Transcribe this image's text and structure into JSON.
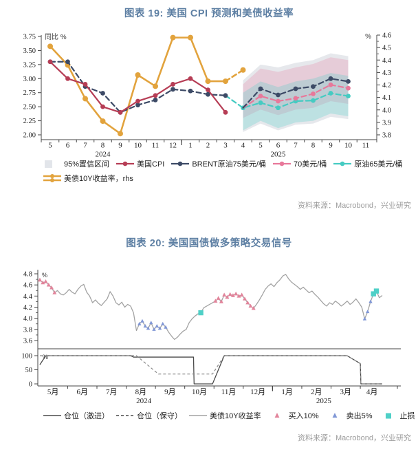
{
  "chart19": {
    "title": "图表 19: 美国 CPI 预测和美债收益率",
    "source": "资料来源：Macrobond，兴业研究",
    "legend_rows": [
      [
        {
          "label": "95%置信区间",
          "marker": "band",
          "color": "#e2e5ea"
        },
        {
          "label": "美国CPI",
          "marker": "line-dot",
          "color": "#b63d55"
        },
        {
          "label": "BRENT原油75美元/桶",
          "marker": "line-dot",
          "color": "#3c4a66"
        },
        {
          "label": "70美元/桶",
          "marker": "line-dot",
          "color": "#e8789a"
        },
        {
          "label": "原油65美元/桶",
          "marker": "line-dot",
          "color": "#45cbc2"
        }
      ],
      [
        {
          "label": "美债10Y收益率，rhs",
          "marker": "double-line-dot",
          "color": "#e2a33d"
        }
      ]
    ],
    "chart_data": {
      "type": "line",
      "categories": [
        "5",
        "6",
        "7",
        "8",
        "9",
        "10",
        "11",
        "12",
        "1",
        "2",
        "3",
        "4",
        "5",
        "6",
        "7",
        "8",
        "9",
        "10",
        "11"
      ],
      "years": [
        {
          "label": "2024",
          "center_index": 3
        },
        {
          "label": "2025",
          "center_index": 13
        }
      ],
      "left_axis": {
        "title": "同比 %",
        "min": 2.0,
        "max": 3.75,
        "ticks": [
          "2.00",
          "2.25",
          "2.50",
          "2.75",
          "3.00",
          "3.25",
          "3.50",
          "3.75"
        ]
      },
      "right_axis": {
        "title": "%",
        "min": 3.8,
        "max": 4.6,
        "ticks": [
          "3.8",
          "3.9",
          "4.0",
          "4.1",
          "4.2",
          "4.3",
          "4.4",
          "4.5",
          "4.6"
        ],
        "minor_step": 0.05
      },
      "year_boundary_index": 7.5,
      "series": [
        {
          "name": "美债10Y收益率",
          "axis": "right",
          "dash": "none",
          "color": "#e2a33d",
          "start": 0,
          "values": [
            4.51,
            4.36,
            4.09,
            3.91,
            3.81,
            4.28,
            4.19,
            4.58,
            4.58,
            4.23,
            4.23
          ]
        },
        {
          "name": "美债10Y收益率-预测段",
          "axis": "right",
          "dash": "dashed",
          "color": "#e2a33d",
          "start": 10,
          "skip_first_dot": true,
          "values": [
            4.23,
            4.32
          ]
        },
        {
          "name": "原油65美元/桶",
          "axis": "left",
          "dash": "dashed",
          "color": "#45cbc2",
          "start": 10,
          "skip_first_dot": true,
          "values": [
            2.7,
            2.48,
            2.57,
            2.48,
            2.6,
            2.61,
            2.74,
            2.69
          ]
        },
        {
          "name": "70美元/桶",
          "axis": "left",
          "dash": "dashed",
          "color": "#e8789a",
          "start": 11,
          "skip_first_dot": true,
          "values": [
            2.48,
            2.69,
            2.6,
            2.65,
            2.73,
            2.89,
            2.83
          ]
        },
        {
          "name": "BRENT原油75美元/桶-预测段",
          "axis": "left",
          "dash": "dashed",
          "color": "#3c4a66",
          "start": 11,
          "skip_first_dot": true,
          "values": [
            2.48,
            2.82,
            2.71,
            2.82,
            2.86,
            3.0,
            2.95
          ]
        },
        {
          "name": "BRENT原油75美元/桶",
          "axis": "left",
          "dash": "dashed",
          "color": "#3c4a66",
          "start": 0,
          "values": [
            3.3,
            3.3,
            2.86,
            2.74,
            2.4,
            2.53,
            2.62,
            2.81,
            2.78,
            2.72,
            2.7
          ]
        },
        {
          "name": "美国CPI",
          "axis": "left",
          "dash": "none",
          "color": "#b63d55",
          "start": 0,
          "values": [
            3.3,
            3.0,
            2.9,
            2.5,
            2.4,
            2.6,
            2.7,
            2.9,
            3.0,
            2.8,
            2.4
          ]
        }
      ],
      "bands": [
        {
          "name": "95%置信区间-灰",
          "color": "#9aa4b2",
          "opacity": 0.25,
          "start": 11,
          "upper": [
            2.97,
            3.25,
            3.2,
            3.28,
            3.33,
            3.45,
            3.4
          ],
          "lower": [
            2.05,
            2.2,
            2.08,
            2.18,
            2.2,
            2.32,
            2.28
          ]
        },
        {
          "name": "95%置信区间-粉",
          "color": "#e8789a",
          "opacity": 0.25,
          "start": 11,
          "upper": [
            2.9,
            3.18,
            3.12,
            3.2,
            3.26,
            3.38,
            3.33
          ],
          "lower": [
            2.3,
            2.45,
            2.35,
            2.45,
            2.48,
            2.6,
            2.55
          ]
        },
        {
          "name": "95%置信区间-青",
          "color": "#45cbc2",
          "opacity": 0.25,
          "start": 11,
          "upper": [
            2.75,
            2.95,
            2.85,
            2.95,
            3.0,
            3.1,
            3.05
          ],
          "lower": [
            2.08,
            2.25,
            2.12,
            2.22,
            2.25,
            2.38,
            2.33
          ]
        }
      ]
    }
  },
  "chart20": {
    "title": "图表 20: 美国国债做多策略交易信号",
    "source": "资料来源：Macrobond，兴业研究",
    "legend_rows": [
      [
        {
          "label": "仓位（激进）",
          "marker": "solid-line",
          "color": "#4a4a4a"
        },
        {
          "label": "仓位（保守）",
          "marker": "dashed-line",
          "color": "#4a4a4a"
        },
        {
          "label": "美债10Y收益率",
          "marker": "gray-line",
          "color": "#a3a3a3"
        },
        {
          "label": "买入10%",
          "marker": "tri-up",
          "color": "#e2849b"
        },
        {
          "label": "卖出5%",
          "marker": "tri-up",
          "color": "#8097d6"
        },
        {
          "label": "止损",
          "marker": "square",
          "color": "#4fd0c7"
        }
      ]
    ],
    "chart_data": {
      "type": "line",
      "x": {
        "count": 118,
        "month_labels": [
          "5月",
          "6月",
          "7月",
          "8月",
          "9月",
          "10月",
          "11月",
          "12月",
          "1月",
          "2月",
          "3月",
          "4月"
        ],
        "month_centers": [
          4.5,
          14.5,
          24.5,
          34.5,
          44.5,
          54.5,
          64.5,
          74.5,
          84.5,
          94.5,
          104.5,
          113.5
        ],
        "month_boundaries": [
          9.5,
          19.5,
          29.5,
          39.5,
          49.5,
          59.5,
          69.5,
          79.5,
          89.5,
          99.5,
          109.5
        ],
        "year_boundary": 79.5,
        "years": [
          {
            "label": "2024",
            "center": 35.5
          },
          {
            "label": "2025",
            "center": 97
          }
        ]
      },
      "yield_panel": {
        "axis_title": "%",
        "ticks": [
          "3.6",
          "3.8",
          "4.0",
          "4.2",
          "4.4",
          "4.6",
          "4.8"
        ],
        "minor_step": 0.1,
        "line_color": "#a3a3a3",
        "series_name": "美债10Y收益率",
        "values": [
          4.69,
          4.64,
          4.66,
          4.6,
          4.55,
          4.46,
          4.5,
          4.44,
          4.42,
          4.46,
          4.52,
          4.47,
          4.44,
          4.52,
          4.58,
          4.61,
          4.47,
          4.4,
          4.28,
          4.33,
          4.27,
          4.23,
          4.29,
          4.35,
          4.48,
          4.4,
          4.28,
          4.24,
          4.29,
          4.2,
          4.25,
          4.22,
          4.1,
          3.78,
          3.9,
          3.95,
          3.86,
          3.82,
          3.92,
          3.8,
          3.86,
          3.82,
          3.9,
          3.84,
          3.75,
          3.68,
          3.62,
          3.66,
          3.72,
          3.77,
          3.8,
          3.92,
          3.99,
          4.04,
          4.08,
          4.1,
          4.19,
          4.22,
          4.25,
          4.28,
          4.31,
          4.36,
          4.3,
          4.42,
          4.38,
          4.43,
          4.41,
          4.44,
          4.4,
          4.42,
          4.35,
          4.28,
          4.22,
          4.18,
          4.25,
          4.33,
          4.42,
          4.52,
          4.58,
          4.62,
          4.57,
          4.64,
          4.69,
          4.76,
          4.79,
          4.71,
          4.65,
          4.61,
          4.57,
          4.52,
          4.56,
          4.51,
          4.46,
          4.49,
          4.43,
          4.38,
          4.32,
          4.26,
          4.22,
          4.28,
          4.25,
          4.31,
          4.27,
          4.22,
          4.26,
          4.31,
          4.25,
          4.29,
          4.35,
          4.28,
          4.2,
          3.99,
          4.12,
          4.3,
          4.44,
          4.49,
          4.37,
          4.41
        ],
        "buy_markers": [
          0,
          1,
          2,
          3,
          4,
          5,
          60,
          61,
          62,
          63,
          64,
          65,
          66,
          67,
          68,
          69,
          70,
          71,
          72,
          73
        ],
        "sell_markers": [
          34,
          35,
          36,
          37,
          38,
          39,
          40,
          41,
          42,
          43,
          111,
          112,
          113
        ],
        "stop_markers": [
          55,
          114,
          115
        ],
        "buy_color": "#e2849b",
        "sell_color": "#8097d6",
        "stop_color": "#4fd0c7"
      },
      "position_panel": {
        "axis_title": "%",
        "ticks": [
          "0",
          "50",
          "100"
        ],
        "aggressive_name": "仓位（激进）",
        "conservative_name": "仓位（保守）",
        "aggressive": [
          [
            0,
            68
          ],
          [
            2,
            100
          ],
          [
            31,
            100
          ],
          [
            32,
            95
          ],
          [
            52.5,
            95
          ],
          [
            52.7,
            0
          ],
          [
            59,
            0
          ],
          [
            63,
            100
          ],
          [
            105,
            100
          ],
          [
            109.5,
            72
          ],
          [
            109.7,
            0
          ],
          [
            117,
            0
          ]
        ],
        "conservative": [
          [
            0,
            100
          ],
          [
            33,
            100
          ],
          [
            40.5,
            35
          ],
          [
            59,
            35
          ],
          [
            63,
            100
          ],
          [
            105,
            100
          ],
          [
            109.5,
            72
          ],
          [
            109.7,
            0
          ],
          [
            117,
            0
          ]
        ]
      }
    }
  },
  "colors": {
    "title": "#5d7fa3",
    "axis": "#444444",
    "tick_text": "#222222",
    "source_text": "#9b9b9b"
  }
}
